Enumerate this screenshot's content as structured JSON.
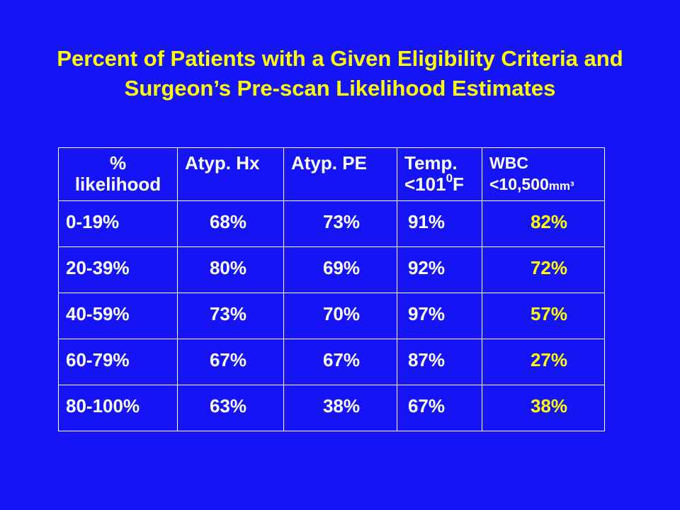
{
  "title": "Percent of Patients with a Given Eligibility Criteria and Surgeon’s Pre-scan Likelihood Estimates",
  "table": {
    "header": [
      [
        "%",
        "likelihood"
      ],
      [
        "Atyp. Hx"
      ],
      [
        "Atyp. PE"
      ],
      [
        "Temp.",
        "<101",
        "0",
        "F"
      ],
      [
        "WBC",
        "<10,500",
        "mm³"
      ]
    ],
    "rows": [
      [
        "0-19%",
        "68%",
        "73%",
        "91%",
        "82%"
      ],
      [
        "20-39%",
        "80%",
        "69%",
        "92%",
        "72%"
      ],
      [
        "40-59%",
        "73%",
        "70%",
        "97%",
        "57%"
      ],
      [
        "60-79%",
        "67%",
        "67%",
        "87%",
        "27%"
      ],
      [
        "80-100%",
        "63%",
        "38%",
        "67%",
        "38%"
      ]
    ]
  }
}
